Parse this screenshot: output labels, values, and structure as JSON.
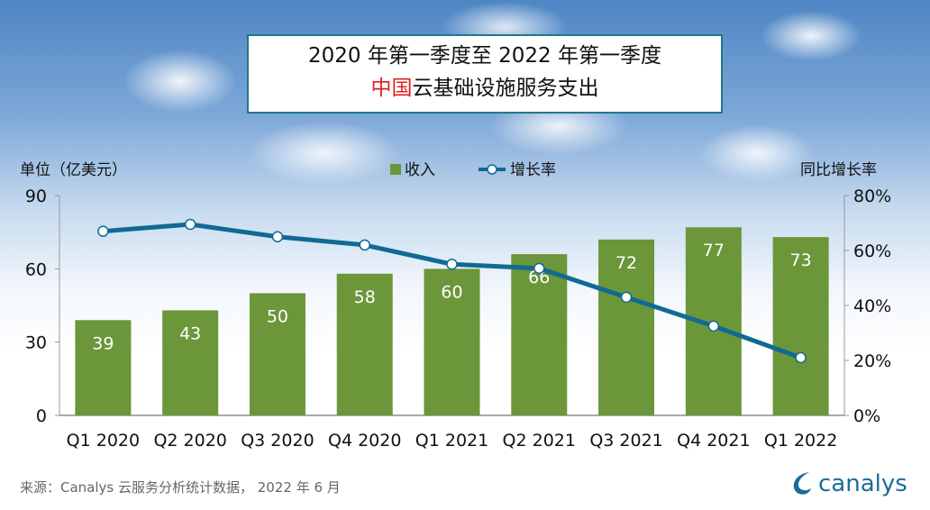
{
  "chart_data": {
    "type": "bar+line",
    "title_line1": "2020 年第一季度至 2022 年第一季度",
    "title_line2_highlight": "中国",
    "title_line2_rest": "云基础设施服务支出",
    "categories": [
      "Q1 2020",
      "Q2 2020",
      "Q3 2020",
      "Q4 2020",
      "Q1 2021",
      "Q2 2021",
      "Q3 2021",
      "Q4 2021",
      "Q1 2022"
    ],
    "series": [
      {
        "name": "收入",
        "type": "bar",
        "axis": "left",
        "color": "#6b963a",
        "values": [
          39,
          43,
          50,
          58,
          60,
          66,
          72,
          77,
          73
        ]
      },
      {
        "name": "增长率",
        "type": "line",
        "axis": "right",
        "color": "#0f6a94",
        "values": [
          67,
          69.5,
          65,
          62,
          55,
          53.5,
          43,
          32.5,
          21
        ]
      }
    ],
    "ylabel_left": "单位（亿美元）",
    "ylabel_right": "同比增长率",
    "ylim_left": [
      0,
      90
    ],
    "yticks_left": [
      "0",
      "30",
      "60",
      "90"
    ],
    "ylim_right": [
      0,
      80
    ],
    "yticks_right": [
      "0%",
      "20%",
      "40%",
      "60%",
      "80%"
    ],
    "legend_position": "top-center"
  },
  "footer": {
    "source": "来源：Canalys 云服务分析统计数据， 2022 年 6 月",
    "logo": "canalys"
  }
}
